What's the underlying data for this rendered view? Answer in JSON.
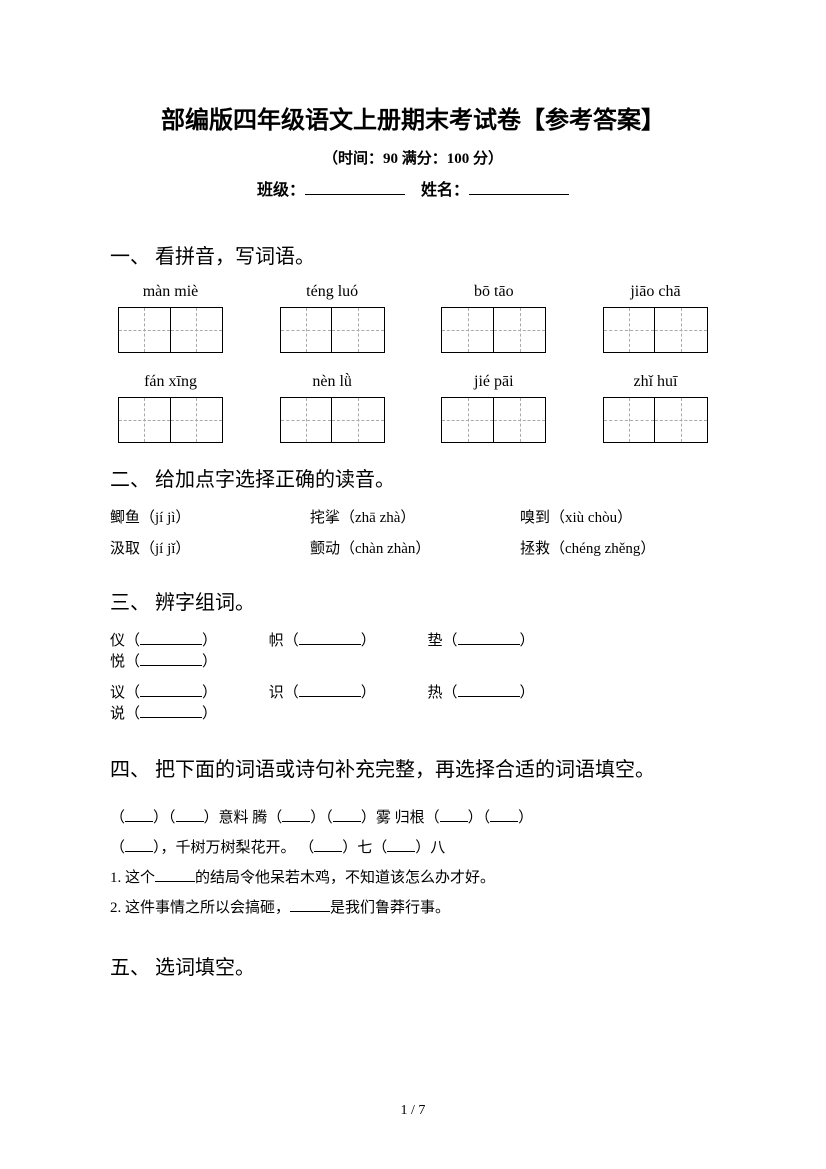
{
  "title": "部编版四年级语文上册期末考试卷【参考答案】",
  "subtitle": "（时间：90   满分：100 分）",
  "info": {
    "class_label": "班级：",
    "name_label": "姓名："
  },
  "sec1": {
    "heading": "一、 看拼音，写词语。",
    "row1": [
      "màn miè",
      "téng luó",
      "bō tāo",
      "jiāo chā"
    ],
    "row2": [
      "fán xīng",
      "nèn lǜ",
      "jié pāi",
      "zhǐ huī"
    ]
  },
  "sec2": {
    "heading": "二、 给加点字选择正确的读音。",
    "line1": {
      "a": "鲫鱼（jí  jì）",
      "b": "挓挲（zhā  zhà）",
      "c": "嗅到（xiù  chòu）"
    },
    "line2": {
      "a": "汲取（jí  jǐ）",
      "b": "颤动（chàn  zhàn）",
      "c": "拯救（chéng  zhěng）"
    }
  },
  "sec3": {
    "heading": "三、 辨字组词。",
    "row1": [
      "仪（",
      "帜（",
      "垫（",
      "悦（"
    ],
    "row2": [
      "议（",
      "识（",
      "热（",
      "说（"
    ]
  },
  "sec4": {
    "heading": "四、 把下面的词语或诗句补充完整，再选择合适的词语填空。",
    "l1a": "（",
    "l1b": "）（",
    "l1c": "）意料    腾（",
    "l1d": "）（",
    "l1e": "）雾    归根（",
    "l1f": "）（",
    "l1g": "）",
    "l2a": "（",
    "l2b": "），千树万树梨花开。     （",
    "l2c": "）七（",
    "l2d": "）八",
    "l3": "1. 这个",
    "l3b": "的结局令他呆若木鸡，不知道该怎么办才好。",
    "l4": "2. 这件事情之所以会搞砸，",
    "l4b": "是我们鲁莽行事。"
  },
  "sec5": {
    "heading": "五、 选词填空。"
  },
  "pageNum": "1 / 7"
}
